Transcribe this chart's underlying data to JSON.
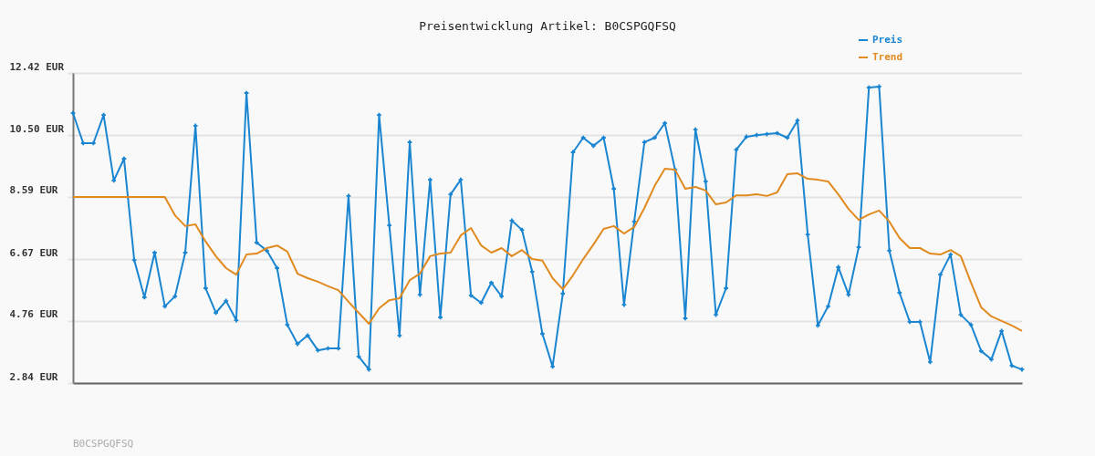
{
  "chart_data": {
    "type": "line",
    "title": "Preisentwicklung Artikel: B0CSPGQFSQ",
    "categories": [
      null,
      null,
      null,
      null,
      null,
      null,
      null,
      null,
      null,
      null,
      null,
      null,
      null,
      null,
      null,
      null,
      null,
      null,
      null,
      null,
      null,
      null,
      null,
      null,
      null,
      null,
      null,
      null,
      null,
      null,
      null,
      null,
      null,
      null,
      null,
      null,
      null,
      null,
      null,
      null,
      null,
      null,
      null,
      null,
      null,
      null,
      null,
      null,
      null,
      null,
      null,
      null,
      null,
      null,
      null,
      null,
      null,
      null,
      null,
      null,
      null,
      null,
      null,
      null,
      null,
      null,
      null,
      null,
      null,
      null,
      null,
      null,
      null,
      null,
      null,
      null,
      null,
      null,
      null,
      null,
      null,
      null,
      null,
      null,
      null,
      null,
      null,
      null,
      null,
      null,
      null,
      null,
      null,
      null
    ],
    "series": [
      {
        "name": "Preis",
        "color": "#1a85d0",
        "marker": "cross",
        "values": [
          11.18,
          10.25,
          10.25,
          11.12,
          9.1,
          9.77,
          6.64,
          5.49,
          6.87,
          5.21,
          5.52,
          6.87,
          10.79,
          5.77,
          5.01,
          5.38,
          4.78,
          11.8,
          7.18,
          6.93,
          6.39,
          4.64,
          4.05,
          4.31,
          3.85,
          3.91,
          3.91,
          8.62,
          3.66,
          3.26,
          11.12,
          7.71,
          4.31,
          10.28,
          5.57,
          9.12,
          4.87,
          8.67,
          9.12,
          5.55,
          5.32,
          5.94,
          5.52,
          7.86,
          7.57,
          6.28,
          4.36,
          3.35,
          5.6,
          9.97,
          10.42,
          10.17,
          10.42,
          8.84,
          5.26,
          7.83,
          10.28,
          10.42,
          10.87,
          9.43,
          4.84,
          10.67,
          9.07,
          4.95,
          5.77,
          10.05,
          10.45,
          10.5,
          10.53,
          10.56,
          10.42,
          10.95,
          7.43,
          4.62,
          5.21,
          6.42,
          5.57,
          7.04,
          11.97,
          12.0,
          6.93,
          5.63,
          4.73,
          4.73,
          3.49,
          6.19,
          6.81,
          4.95,
          4.64,
          3.83,
          3.57,
          4.45,
          3.38,
          3.26
        ]
      },
      {
        "name": "Trend",
        "color": "#e08a20",
        "marker": "none",
        "values": [
          8.59,
          8.59,
          8.59,
          8.59,
          8.59,
          8.59,
          8.59,
          8.59,
          8.59,
          8.59,
          8.02,
          7.69,
          7.74,
          7.21,
          6.76,
          6.39,
          6.19,
          6.81,
          6.84,
          7.01,
          7.09,
          6.9,
          6.22,
          6.08,
          5.97,
          5.83,
          5.71,
          5.35,
          5.01,
          4.67,
          5.15,
          5.4,
          5.46,
          6.02,
          6.22,
          6.76,
          6.84,
          6.87,
          7.4,
          7.63,
          7.09,
          6.87,
          7.01,
          6.76,
          6.95,
          6.67,
          6.62,
          6.08,
          5.74,
          6.17,
          6.67,
          7.12,
          7.6,
          7.69,
          7.46,
          7.66,
          8.25,
          8.93,
          9.46,
          9.43,
          8.84,
          8.9,
          8.79,
          8.36,
          8.42,
          8.64,
          8.64,
          8.67,
          8.62,
          8.73,
          9.29,
          9.32,
          9.15,
          9.12,
          9.07,
          8.67,
          8.22,
          7.88,
          8.05,
          8.17,
          7.83,
          7.32,
          7.01,
          7.01,
          6.84,
          6.81,
          6.95,
          6.76,
          5.94,
          5.18,
          4.9,
          4.76,
          4.62,
          4.45
        ]
      }
    ],
    "ylim": [
      2.84,
      12.42
    ],
    "yticks": [
      {
        "value": 2.84,
        "label": "2.84 EUR"
      },
      {
        "value": 4.76,
        "label": "4.76 EUR"
      },
      {
        "value": 6.67,
        "label": "6.67 EUR"
      },
      {
        "value": 8.59,
        "label": "8.59 EUR"
      },
      {
        "value": 10.5,
        "label": "10.50 EUR"
      },
      {
        "value": 12.42,
        "label": "12.42 EUR"
      }
    ],
    "tick_labels": "y",
    "grid": "y",
    "legend": "top right",
    "annotations": [
      "B0CSPGQFSQ"
    ]
  }
}
